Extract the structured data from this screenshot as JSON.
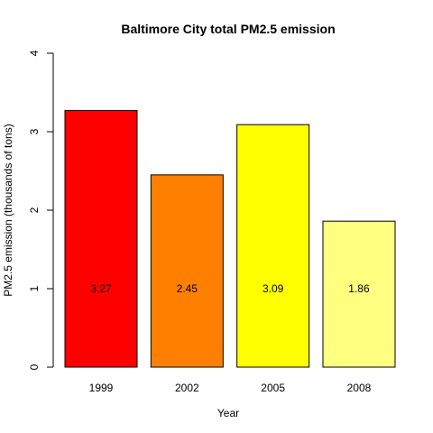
{
  "chart_data": {
    "type": "bar",
    "title": "Baltimore City total PM2.5 emission",
    "xlabel": "Year",
    "ylabel": "PM2.5 emission (thousands of tons)",
    "categories": [
      "1999",
      "2002",
      "2005",
      "2008"
    ],
    "values": [
      3.27,
      2.45,
      3.09,
      1.86
    ],
    "data_labels": [
      "3.27",
      "2.45",
      "3.09",
      "1.86"
    ],
    "colors": [
      "#ff0000",
      "#ff8000",
      "#ffff00",
      "#ffff80"
    ],
    "ylim": [
      0,
      4
    ],
    "yticks": [
      0,
      1,
      2,
      3,
      4
    ],
    "ytick_labels": [
      "0",
      "1",
      "2",
      "3",
      "4"
    ],
    "grid": false,
    "legend": "none"
  }
}
